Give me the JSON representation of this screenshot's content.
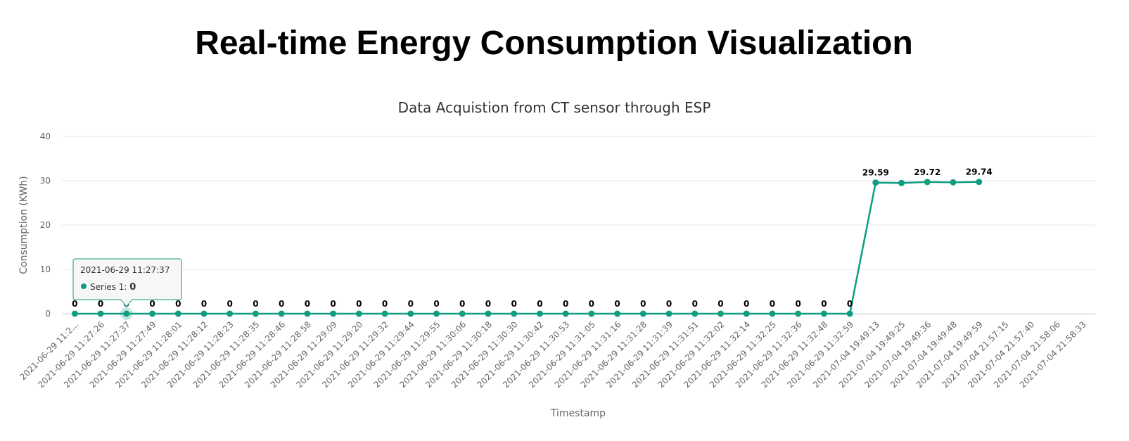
{
  "page": {
    "title": "Real-time Energy Consumption Visualization"
  },
  "chart_data": {
    "type": "line",
    "title": "Data Acquistion from CT sensor through ESP",
    "xlabel": "Timestamp",
    "ylabel": "Consumption (KWh)",
    "ylim": [
      0,
      40
    ],
    "yticks": [
      0,
      10,
      20,
      30,
      40
    ],
    "grid": true,
    "legend": "none",
    "color": "#0f9d82",
    "categories": [
      "2021-06-29 11:2...",
      "2021-06-29 11:27:26",
      "2021-06-29 11:27:37",
      "2021-06-29 11:27:49",
      "2021-06-29 11:28:01",
      "2021-06-29 11:28:12",
      "2021-06-29 11:28:23",
      "2021-06-29 11:28:35",
      "2021-06-29 11:28:46",
      "2021-06-29 11:28:58",
      "2021-06-29 11:29:09",
      "2021-06-29 11:29:20",
      "2021-06-29 11:29:32",
      "2021-06-29 11:29:44",
      "2021-06-29 11:29:55",
      "2021-06-29 11:30:06",
      "2021-06-29 11:30:18",
      "2021-06-29 11:30:30",
      "2021-06-29 11:30:42",
      "2021-06-29 11:30:53",
      "2021-06-29 11:31:05",
      "2021-06-29 11:31:16",
      "2021-06-29 11:31:28",
      "2021-06-29 11:31:39",
      "2021-06-29 11:31:51",
      "2021-06-29 11:32:02",
      "2021-06-29 11:32:14",
      "2021-06-29 11:32:25",
      "2021-06-29 11:32:36",
      "2021-06-29 11:32:48",
      "2021-06-29 11:32:59",
      "2021-07-04 19:49:13",
      "2021-07-04 19:49:25",
      "2021-07-04 19:49:36",
      "2021-07-04 19:49:48",
      "2021-07-04 19:49:59",
      "2021-07-04 21:57:15",
      "2021-07-04 21:57:40",
      "2021-07-04 21:58:06",
      "2021-07-04 21:58:33"
    ],
    "series": [
      {
        "name": "Series 1",
        "values": [
          0,
          0,
          0,
          0,
          0,
          0,
          0,
          0,
          0,
          0,
          0,
          0,
          0,
          0,
          0,
          0,
          0,
          0,
          0,
          0,
          0,
          0,
          0,
          0,
          0,
          0,
          0,
          0,
          0,
          0,
          0,
          29.59,
          29.5,
          29.72,
          29.65,
          29.74,
          null,
          null,
          null,
          null
        ],
        "data_labels": [
          "0",
          "0",
          "0",
          "0",
          "0",
          "0",
          "0",
          "0",
          "0",
          "0",
          "0",
          "0",
          "0",
          "0",
          "0",
          "0",
          "0",
          "0",
          "0",
          "0",
          "0",
          "0",
          "0",
          "0",
          "0",
          "0",
          "0",
          "0",
          "0",
          "0",
          "0",
          "29.59",
          null,
          "29.72",
          null,
          "29.74",
          null,
          null,
          null,
          null
        ]
      }
    ],
    "tooltip": {
      "point_index": 2,
      "header": "2021-06-29 11:27:37",
      "series_label": "Series 1: ",
      "value": "0"
    }
  }
}
